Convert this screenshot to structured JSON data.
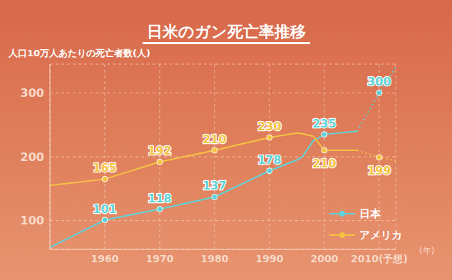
{
  "chart_data": {
    "type": "line",
    "title": "日米のガン死亡率推移",
    "y_label": "人口10万人あたりの死亡者数(人)",
    "x_label": "(年)",
    "x": [
      1950,
      1960,
      1970,
      1980,
      1990,
      1995,
      1996,
      1998,
      2000,
      2006,
      2010,
      2013
    ],
    "xlim": [
      1950,
      2013
    ],
    "xticks": [
      1960,
      1970,
      1980,
      1990,
      2000,
      {
        "value": 2010,
        "label": "2010(予想)"
      }
    ],
    "ylim": [
      55,
      345
    ],
    "yticks": [
      100,
      200,
      300
    ],
    "grid": true,
    "legend": "lower right",
    "data_labels": true,
    "series": [
      {
        "name": "日本",
        "color": "#5fd3d9",
        "marker": "circle",
        "line_style": "solid",
        "values": [
          58,
          101,
          118,
          137,
          178,
          195,
          200,
          225,
          235,
          240,
          null,
          null
        ],
        "value_labels": [
          null,
          "101",
          "118",
          "137",
          "178",
          null,
          null,
          null,
          "235",
          null,
          null,
          null
        ]
      },
      {
        "name": "日本",
        "color": "#5fd3d9",
        "marker": "circle",
        "line_style": "dotted",
        "values": [
          null,
          null,
          null,
          null,
          null,
          null,
          null,
          null,
          null,
          240,
          300,
          340
        ],
        "value_labels": [
          null,
          null,
          null,
          null,
          null,
          null,
          null,
          null,
          null,
          null,
          "300",
          null
        ]
      },
      {
        "name": "アメリカ",
        "color": "#f5c342",
        "marker": "circle",
        "line_style": "solid",
        "values": [
          155,
          165,
          192,
          210,
          230,
          237,
          236,
          232,
          210,
          210,
          null,
          null
        ],
        "value_labels": [
          null,
          "165",
          "192",
          "210",
          "230",
          null,
          null,
          null,
          "210",
          null,
          null,
          null
        ]
      },
      {
        "name": "アメリカ",
        "color": "#f5c342",
        "marker": "circle",
        "line_style": "dotted",
        "values": [
          null,
          null,
          null,
          null,
          null,
          null,
          null,
          null,
          null,
          210,
          199,
          194
        ],
        "value_labels": [
          null,
          null,
          null,
          null,
          null,
          null,
          null,
          null,
          null,
          null,
          "199",
          null
        ]
      }
    ]
  }
}
